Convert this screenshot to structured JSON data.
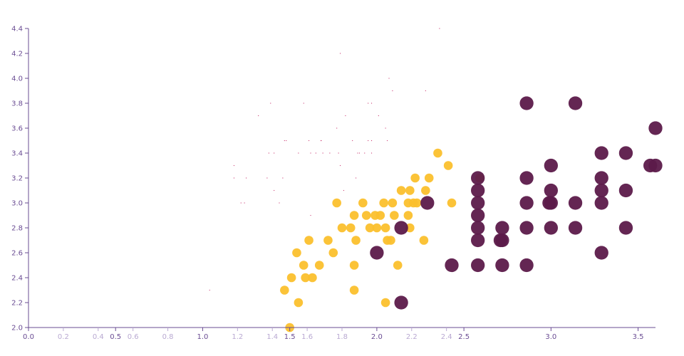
{
  "chart_data": {
    "type": "scatter",
    "title": "",
    "xlabel": "",
    "ylabel": "",
    "xlim": [
      0,
      3.6
    ],
    "ylim": [
      2.0,
      4.4
    ],
    "grid": false,
    "colors": {
      "axis": "#6a4c93",
      "major_tick_label": "#6a4c93",
      "minor_tick_label": "#b9a9d2",
      "series_small": "#c2185b",
      "series_medium": "#fbc02d",
      "series_large": "#5c1a4a"
    },
    "x_ticks": [
      {
        "value": 0.0,
        "label": "0.0",
        "major": true
      },
      {
        "value": 0.2,
        "label": "0.2",
        "major": false
      },
      {
        "value": 0.4,
        "label": "0.4",
        "major": false
      },
      {
        "value": 0.5,
        "label": "0.5",
        "major": true
      },
      {
        "value": 0.6,
        "label": "0.6",
        "major": false
      },
      {
        "value": 0.8,
        "label": "0.8",
        "major": false
      },
      {
        "value": 1.0,
        "label": "1.0",
        "major": true
      },
      {
        "value": 1.2,
        "label": "1.2",
        "major": false
      },
      {
        "value": 1.4,
        "label": "1.4",
        "major": false
      },
      {
        "value": 1.5,
        "label": "1.5",
        "major": true
      },
      {
        "value": 1.6,
        "label": "1.6",
        "major": false
      },
      {
        "value": 1.8,
        "label": "1.8",
        "major": false
      },
      {
        "value": 2.0,
        "label": "2.0",
        "major": true
      },
      {
        "value": 2.2,
        "label": "2.2",
        "major": false
      },
      {
        "value": 2.4,
        "label": "2.4",
        "major": false
      },
      {
        "value": 2.5,
        "label": "2.5",
        "major": true
      },
      {
        "value": 3.0,
        "label": "3.0",
        "major": true
      },
      {
        "value": 3.5,
        "label": "3.5",
        "major": true
      }
    ],
    "y_ticks": [
      "2.0",
      "2.2",
      "2.4",
      "2.6",
      "2.8",
      "3.0",
      "3.2",
      "3.4",
      "3.6",
      "3.8",
      "4.0",
      "4.2",
      "4.4"
    ],
    "series": [
      {
        "color_key": "series_small",
        "size": 0.1,
        "points": [
          [
            1.04,
            2.3
          ],
          [
            1.22,
            3.0
          ],
          [
            1.24,
            3.0
          ],
          [
            1.41,
            3.4
          ],
          [
            1.47,
            3.5
          ],
          [
            1.48,
            3.5
          ],
          [
            1.58,
            3.8
          ],
          [
            1.62,
            3.4
          ],
          [
            1.68,
            3.5
          ],
          [
            1.68,
            3.5
          ],
          [
            1.73,
            3.4
          ],
          [
            1.79,
            3.3
          ],
          [
            1.82,
            3.7
          ],
          [
            1.89,
            3.4
          ],
          [
            1.93,
            3.4
          ],
          [
            1.95,
            3.8
          ],
          [
            1.97,
            3.8
          ],
          [
            1.97,
            3.4
          ],
          [
            2.09,
            3.9
          ],
          [
            2.28,
            3.9
          ],
          [
            2.36,
            4.4
          ],
          [
            1.18,
            3.3
          ],
          [
            1.18,
            3.2
          ],
          [
            1.25,
            3.2
          ],
          [
            1.32,
            3.7
          ],
          [
            1.37,
            3.2
          ],
          [
            1.38,
            3.4
          ],
          [
            1.39,
            3.8
          ],
          [
            1.41,
            3.1
          ],
          [
            1.44,
            3.0
          ],
          [
            1.46,
            3.2
          ],
          [
            1.55,
            3.4
          ],
          [
            1.61,
            3.5
          ],
          [
            1.62,
            2.9
          ],
          [
            1.65,
            3.4
          ],
          [
            1.69,
            3.4
          ],
          [
            1.77,
            3.6
          ],
          [
            1.78,
            3.4
          ],
          [
            1.79,
            4.2
          ],
          [
            1.81,
            3.1
          ],
          [
            1.86,
            3.5
          ],
          [
            1.88,
            3.2
          ],
          [
            1.9,
            3.4
          ],
          [
            1.97,
            3.5
          ],
          [
            2.01,
            3.7
          ],
          [
            2.05,
            3.6
          ],
          [
            2.06,
            3.5
          ],
          [
            2.07,
            4.0
          ],
          [
            1.95,
            3.5
          ]
        ]
      },
      {
        "color_key": "series_medium",
        "size": 1.5,
        "points": [
          [
            1.5,
            2.0
          ],
          [
            1.55,
            2.2
          ],
          [
            1.47,
            2.3
          ],
          [
            1.59,
            2.4
          ],
          [
            1.51,
            2.4
          ],
          [
            1.63,
            2.4
          ],
          [
            1.58,
            2.5
          ],
          [
            1.67,
            2.5
          ],
          [
            1.75,
            2.6
          ],
          [
            1.54,
            2.6
          ],
          [
            1.61,
            2.7
          ],
          [
            1.72,
            2.7
          ],
          [
            1.87,
            2.3
          ],
          [
            1.87,
            2.5
          ],
          [
            1.88,
            2.7
          ],
          [
            2.05,
            2.2
          ],
          [
            2.12,
            2.5
          ],
          [
            2.06,
            2.7
          ],
          [
            1.8,
            2.8
          ],
          [
            1.85,
            2.8
          ],
          [
            1.96,
            2.8
          ],
          [
            2.0,
            2.8
          ],
          [
            2.05,
            2.8
          ],
          [
            1.87,
            2.9
          ],
          [
            1.94,
            2.9
          ],
          [
            1.99,
            2.9
          ],
          [
            2.02,
            2.9
          ],
          [
            2.1,
            2.9
          ],
          [
            2.18,
            2.9
          ],
          [
            1.77,
            3.0
          ],
          [
            1.92,
            3.0
          ],
          [
            2.04,
            3.0
          ],
          [
            2.09,
            3.0
          ],
          [
            2.18,
            3.0
          ],
          [
            2.23,
            3.0
          ],
          [
            2.43,
            3.0
          ],
          [
            2.14,
            3.1
          ],
          [
            2.19,
            3.1
          ],
          [
            2.28,
            3.1
          ],
          [
            2.22,
            3.2
          ],
          [
            2.3,
            3.2
          ],
          [
            2.59,
            3.2
          ],
          [
            2.41,
            3.3
          ],
          [
            2.35,
            3.4
          ],
          [
            2.19,
            2.8
          ],
          [
            2.27,
            2.7
          ],
          [
            2.21,
            3.0
          ],
          [
            2.08,
            2.7
          ]
        ]
      },
      {
        "color_key": "series_large",
        "size": 2.3,
        "points": [
          [
            2.14,
            2.2
          ],
          [
            2.0,
            2.6
          ],
          [
            2.14,
            2.8
          ],
          [
            2.29,
            3.0
          ],
          [
            2.43,
            2.5
          ],
          [
            2.58,
            2.5
          ],
          [
            2.58,
            2.7
          ],
          [
            2.58,
            2.8
          ],
          [
            2.58,
            2.9
          ],
          [
            2.58,
            3.0
          ],
          [
            2.58,
            3.1
          ],
          [
            2.58,
            3.2
          ],
          [
            2.72,
            2.5
          ],
          [
            2.72,
            2.7
          ],
          [
            2.71,
            2.7
          ],
          [
            2.72,
            2.8
          ],
          [
            2.86,
            2.5
          ],
          [
            2.86,
            2.8
          ],
          [
            2.86,
            3.0
          ],
          [
            2.86,
            3.2
          ],
          [
            2.86,
            3.8
          ],
          [
            3.0,
            2.8
          ],
          [
            3.0,
            3.0
          ],
          [
            3.0,
            3.1
          ],
          [
            3.0,
            3.3
          ],
          [
            2.99,
            3.0
          ],
          [
            3.14,
            2.8
          ],
          [
            3.14,
            3.0
          ],
          [
            3.14,
            3.8
          ],
          [
            3.29,
            2.6
          ],
          [
            3.29,
            3.0
          ],
          [
            3.29,
            3.1
          ],
          [
            3.29,
            3.2
          ],
          [
            3.29,
            3.4
          ],
          [
            3.43,
            2.8
          ],
          [
            3.43,
            3.1
          ],
          [
            3.43,
            3.4
          ],
          [
            3.57,
            3.3
          ],
          [
            3.6,
            3.3
          ],
          [
            3.6,
            3.6
          ]
        ]
      }
    ]
  }
}
